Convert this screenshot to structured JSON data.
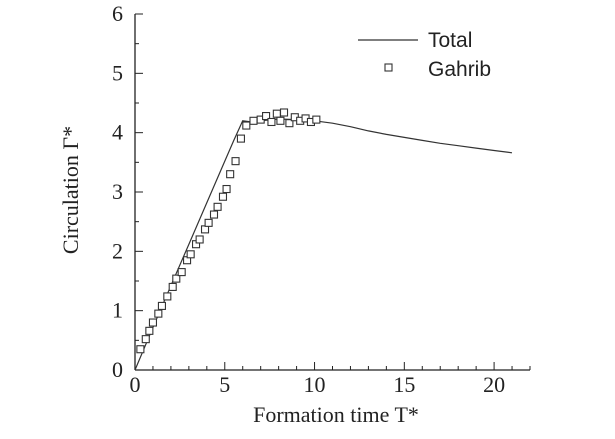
{
  "chart_data": {
    "type": "line",
    "title": "",
    "xlabel": "Formation time T*",
    "ylabel": "Circulation Γ*",
    "xlim": [
      0,
      22
    ],
    "ylim": [
      0,
      6
    ],
    "xticks": [
      0,
      5,
      10,
      15,
      20
    ],
    "yticks": [
      0,
      1,
      2,
      3,
      4,
      5,
      6
    ],
    "legend_position": "top-right",
    "colors": {
      "line": "#333333",
      "marker": "#333333",
      "axis": "#222222"
    },
    "series": [
      {
        "name": "Total",
        "style": "line",
        "x": [
          0,
          1,
          2,
          3,
          4,
          5,
          5.5,
          6,
          6.5,
          7,
          8,
          9,
          10,
          11,
          12,
          13,
          14,
          15,
          16,
          17,
          18,
          19,
          20,
          21
        ],
        "y": [
          0,
          0.72,
          1.42,
          2.12,
          2.82,
          3.52,
          3.87,
          4.2,
          4.18,
          4.2,
          4.23,
          4.22,
          4.2,
          4.16,
          4.1,
          4.03,
          3.97,
          3.92,
          3.87,
          3.82,
          3.78,
          3.74,
          3.7,
          3.66
        ]
      },
      {
        "name": "Gahrib",
        "style": "marker-square",
        "x": [
          0.3,
          0.6,
          0.8,
          1.0,
          1.3,
          1.5,
          1.8,
          2.1,
          2.3,
          2.6,
          2.9,
          3.1,
          3.4,
          3.6,
          3.9,
          4.1,
          4.4,
          4.6,
          4.9,
          5.1,
          5.3,
          5.6,
          5.9,
          6.2,
          6.6,
          7.0,
          7.3,
          7.6,
          7.9,
          8.1,
          8.3,
          8.6,
          8.9,
          9.2,
          9.5,
          9.8,
          10.1
        ],
        "y": [
          0.35,
          0.52,
          0.66,
          0.8,
          0.95,
          1.08,
          1.24,
          1.4,
          1.54,
          1.65,
          1.85,
          1.95,
          2.12,
          2.2,
          2.37,
          2.48,
          2.62,
          2.75,
          2.92,
          3.05,
          3.3,
          3.52,
          3.9,
          4.12,
          4.2,
          4.22,
          4.28,
          4.18,
          4.32,
          4.2,
          4.34,
          4.16,
          4.26,
          4.2,
          4.24,
          4.18,
          4.22
        ]
      }
    ]
  }
}
